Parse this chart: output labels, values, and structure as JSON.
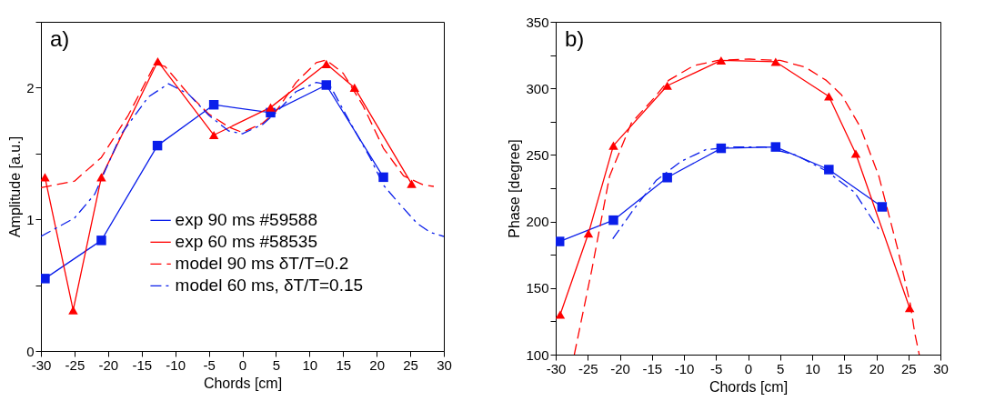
{
  "chart_data": [
    {
      "type": "line",
      "annotations": [
        "a)"
      ],
      "xlabel": "Chords [cm]",
      "ylabel": "Amplitude [a.u.]",
      "xlim": [
        -30,
        30
      ],
      "ylim": [
        0,
        2.5
      ],
      "xticks": [
        -30,
        -25,
        -20,
        -15,
        -10,
        -5,
        0,
        5,
        10,
        15,
        20,
        25,
        30
      ],
      "yticks": [
        0,
        {
          "value": 0.5,
          "label": null
        },
        1,
        {
          "value": 1.5,
          "label": null
        },
        2,
        {
          "value": 2.5,
          "label": null
        }
      ],
      "legend": "bottom right",
      "series": [
        {
          "name": "exp 90 ms #59588",
          "color": "#0a1eea",
          "marker": "square",
          "line_style": "solid",
          "x": [
            -29.4,
            -21,
            -12.65,
            -4.25,
            4.2,
            12.5,
            21
          ],
          "values": [
            0.55,
            0.84,
            1.56,
            1.87,
            1.81,
            2.02,
            1.32
          ]
        },
        {
          "name": "exp 60 ms #58535",
          "color": "#ff0000",
          "marker": "triangle",
          "line_style": "solid",
          "x": [
            -29.4,
            -25.2,
            -21,
            -12.6,
            -4.25,
            4.2,
            12.5,
            16.7,
            25.2
          ],
          "values": [
            1.32,
            0.31,
            1.32,
            2.2,
            1.64,
            1.85,
            2.18,
            2.0,
            1.27
          ]
        },
        {
          "name": "model 90 ms δT/T=0.2",
          "color": "#ff0000",
          "marker": "none",
          "line_style": "dashed",
          "x": [
            -30,
            -25,
            -21,
            -17,
            -13,
            -11.5,
            -8,
            -5,
            -2,
            0,
            3,
            5,
            8,
            11,
            12.5,
            15,
            18,
            21,
            24,
            27,
            28.5
          ],
          "values": [
            1.24,
            1.29,
            1.47,
            1.79,
            2.18,
            2.16,
            1.95,
            1.8,
            1.7,
            1.66,
            1.73,
            1.82,
            2.04,
            2.19,
            2.21,
            2.11,
            1.86,
            1.54,
            1.33,
            1.26,
            1.25
          ]
        },
        {
          "name": "model 60 ms, δT/T=0.15",
          "color": "#0a1eea",
          "marker": "none",
          "line_style": "dashdot",
          "x": [
            -30,
            -25,
            -22,
            -18,
            -14,
            -11,
            -8,
            -5,
            -2,
            0,
            3,
            5,
            8,
            11,
            13,
            16,
            19,
            21,
            23,
            26,
            28,
            30
          ],
          "values": [
            0.87,
            1.01,
            1.19,
            1.65,
            1.93,
            2.03,
            1.95,
            1.79,
            1.67,
            1.65,
            1.72,
            1.81,
            1.97,
            2.04,
            2.02,
            1.74,
            1.47,
            1.26,
            1.14,
            0.97,
            0.9,
            0.87
          ]
        }
      ]
    },
    {
      "type": "line",
      "annotations": [
        "b)"
      ],
      "xlabel": "Chords [cm]",
      "ylabel": "Phase [degree]",
      "xlim": [
        -30,
        30
      ],
      "ylim": [
        100,
        350
      ],
      "xticks": [
        -30,
        -25,
        -20,
        -15,
        -10,
        -5,
        0,
        5,
        10,
        15,
        20,
        25,
        30
      ],
      "yticks": [
        100,
        {
          "value": 125,
          "label": null
        },
        150,
        {
          "value": 175,
          "label": null
        },
        200,
        {
          "value": 225,
          "label": null
        },
        250,
        {
          "value": 275,
          "label": null
        },
        300,
        {
          "value": 325,
          "label": null
        },
        350
      ],
      "series": [
        {
          "color": "#0a1eea",
          "marker": "square",
          "line_style": "solid",
          "x": [
            -29.4,
            -21,
            -12.6,
            -4.2,
            4.3,
            12.6,
            20.9
          ],
          "values": [
            185,
            201,
            233,
            255,
            256,
            239,
            211
          ]
        },
        {
          "color": "#ff0000",
          "marker": "triangle",
          "line_style": "solid",
          "x": [
            -29.3,
            -24.9,
            -21,
            -12.6,
            -4.2,
            4.3,
            12.6,
            16.8,
            25.2
          ],
          "values": [
            130,
            191,
            257,
            302,
            321,
            320,
            294,
            251,
            135
          ]
        },
        {
          "color": "#ff0000",
          "marker": "none",
          "line_style": "dashed",
          "x": [
            -27.1,
            -24.4,
            -21.6,
            -18.2,
            -14.8,
            -12.4,
            -8.5,
            -4.7,
            0.2,
            5,
            8.9,
            12.2,
            14.6,
            17.5,
            20.4,
            23.3,
            25.3,
            26,
            26.7
          ],
          "values": [
            100,
            163,
            234,
            274,
            292,
            306,
            317,
            321,
            322,
            321,
            316,
            306,
            295,
            271,
            234,
            180,
            138,
            116,
            100
          ]
        },
        {
          "color": "#0a1eea",
          "marker": "none",
          "line_style": "dashdot",
          "x": [
            -21.1,
            -17.7,
            -14.3,
            -10.5,
            -6.6,
            -2.2,
            2.6,
            7.4,
            12.2,
            16.6,
            20.4
          ],
          "values": [
            187,
            210,
            231,
            245,
            254,
            256,
            256,
            250,
            238,
            222,
            194
          ]
        }
      ]
    }
  ]
}
